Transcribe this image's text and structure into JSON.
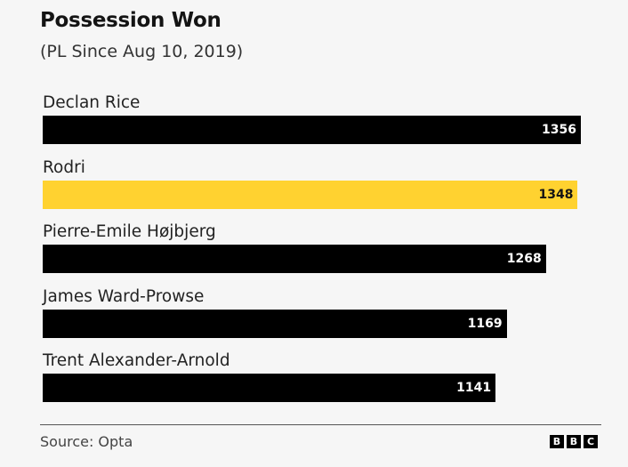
{
  "chart_data": {
    "type": "bar",
    "orientation": "horizontal",
    "title": "Possession Won",
    "subtitle": "(PL Since Aug 10, 2019)",
    "categories": [
      "Declan Rice",
      "Rodri",
      "Pierre-Emile Højbjerg",
      "James Ward-Prowse",
      "Trent Alexander-Arnold"
    ],
    "values": [
      1356,
      1348,
      1268,
      1169,
      1141
    ],
    "colors": [
      "#000000",
      "#ffd230",
      "#000000",
      "#000000",
      "#000000"
    ],
    "label_colors": [
      "#ffffff",
      "#141414",
      "#ffffff",
      "#ffffff",
      "#ffffff"
    ],
    "xlim": [
      0,
      1356
    ],
    "grid": false,
    "data_labels": true
  },
  "footer": {
    "source": "Source: Opta",
    "logo_letters": [
      "B",
      "B",
      "C"
    ]
  }
}
